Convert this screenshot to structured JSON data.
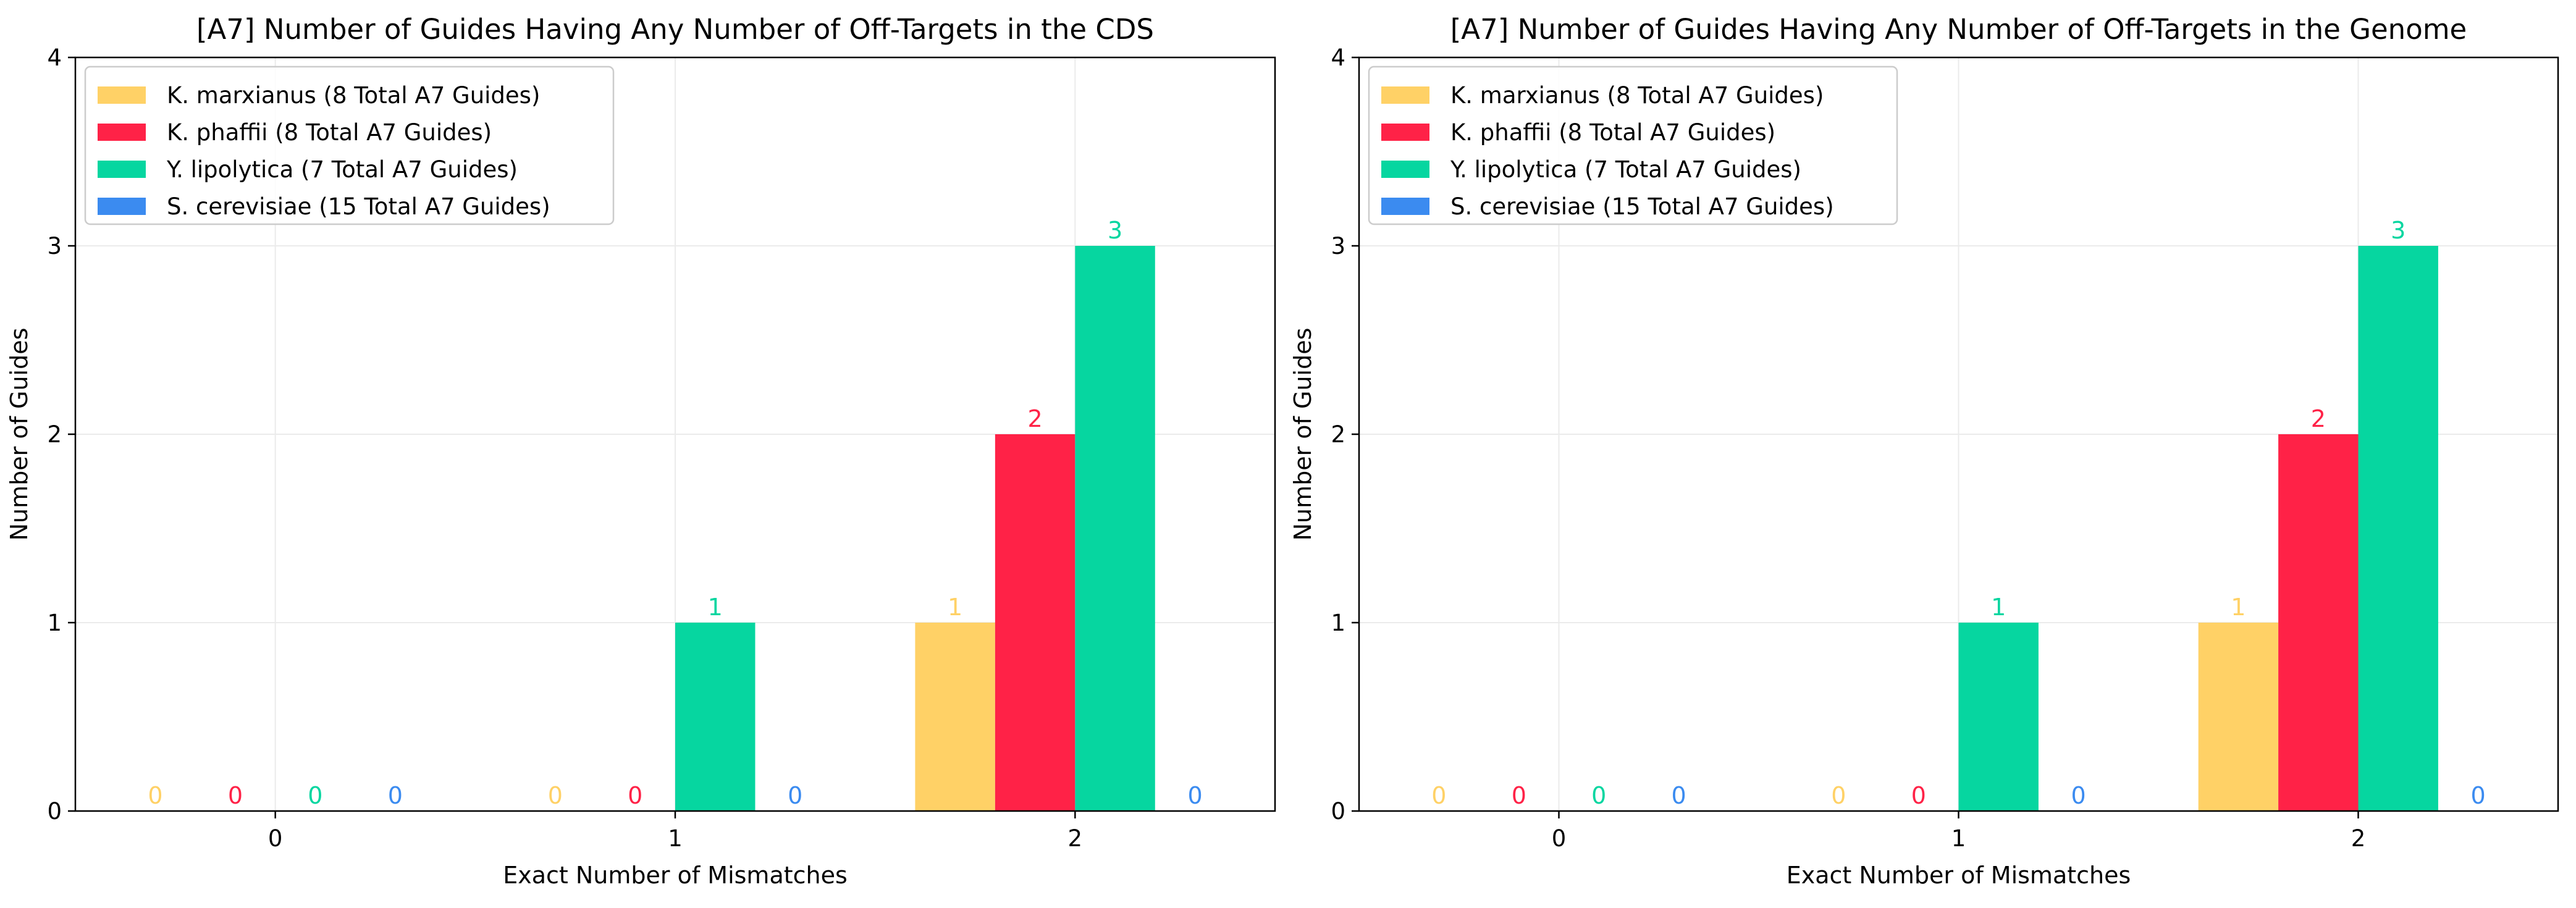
{
  "chart_data": [
    {
      "type": "bar",
      "title": "[A7] Number of Guides Having Any Number of Off-Targets in the CDS",
      "xlabel": "Exact Number of Mismatches",
      "ylabel": "Number of Guides",
      "categories": [
        "0",
        "1",
        "2"
      ],
      "ylim": [
        0,
        4
      ],
      "yticks": [
        "0",
        "1",
        "2",
        "3",
        "4"
      ],
      "grid": true,
      "legend_position": "top-left",
      "series": [
        {
          "name": "K. marxianus (8 Total A7 Guides)",
          "color": "#FFD166",
          "values": [
            0,
            0,
            1
          ]
        },
        {
          "name": "K. phaffii (8 Total A7 Guides)",
          "color": "#FF2247",
          "values": [
            0,
            0,
            2
          ]
        },
        {
          "name": "Y. lipolytica (7 Total A7 Guides)",
          "color": "#06D6A0",
          "values": [
            0,
            1,
            3
          ]
        },
        {
          "name": "S. cerevisiae (15 Total A7 Guides)",
          "color": "#3B8BF0",
          "values": [
            0,
            0,
            0
          ]
        }
      ]
    },
    {
      "type": "bar",
      "title": "[A7] Number of Guides Having Any Number of Off-Targets in the Genome",
      "xlabel": "Exact Number of Mismatches",
      "ylabel": "Number of Guides",
      "categories": [
        "0",
        "1",
        "2"
      ],
      "ylim": [
        0,
        4
      ],
      "yticks": [
        "0",
        "1",
        "2",
        "3",
        "4"
      ],
      "grid": true,
      "legend_position": "top-left",
      "series": [
        {
          "name": "K. marxianus (8 Total A7 Guides)",
          "color": "#FFD166",
          "values": [
            0,
            0,
            1
          ]
        },
        {
          "name": "K. phaffii (8 Total A7 Guides)",
          "color": "#FF2247",
          "values": [
            0,
            0,
            2
          ]
        },
        {
          "name": "Y. lipolytica (7 Total A7 Guides)",
          "color": "#06D6A0",
          "values": [
            0,
            1,
            3
          ]
        },
        {
          "name": "S. cerevisiae (15 Total A7 Guides)",
          "color": "#3B8BF0",
          "values": [
            0,
            0,
            0
          ]
        }
      ]
    }
  ]
}
